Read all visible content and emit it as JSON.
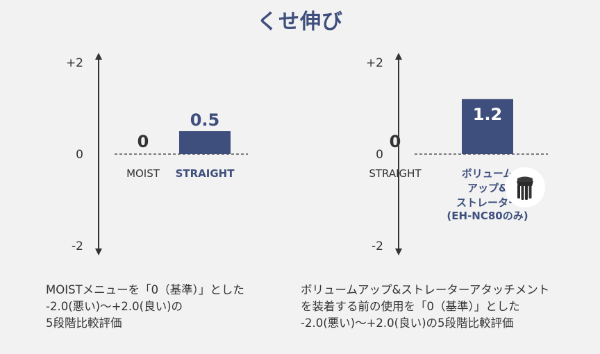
{
  "title": "くせ伸び",
  "colors": {
    "bar": "#3f4f7d",
    "title": "#3f4f7d",
    "text": "#333333",
    "background": "#f2f2f2"
  },
  "chart_data": [
    {
      "type": "bar",
      "title": "",
      "ylim": [
        -2,
        2
      ],
      "yticks": [
        "+2",
        "0",
        "-2"
      ],
      "ytick_values": [
        2,
        0,
        -2
      ],
      "categories": [
        "MOIST",
        "STRAIGHT"
      ],
      "values": [
        0,
        0.5
      ],
      "value_labels": [
        "0",
        "0.5"
      ],
      "highlight": [
        false,
        true
      ],
      "caption": "MOISTメニューを「0（基準）」とした\n-2.0(悪い)〜+2.0(良い)の\n5段階比較評価"
    },
    {
      "type": "bar",
      "title": "",
      "ylim": [
        -2,
        2
      ],
      "yticks": [
        "+2",
        "0",
        "-2"
      ],
      "ytick_values": [
        2,
        0,
        -2
      ],
      "categories": [
        "STRAIGHT",
        "ボリューム\nアップ&\nストレーター\n(EH-NC80のみ)"
      ],
      "values": [
        0,
        1.2
      ],
      "value_labels": [
        "0",
        "1.2"
      ],
      "highlight": [
        false,
        true
      ],
      "caption": "ボリュームアップ&ストレーターアタッチメント\nを装着する前の使用を「0（基準）」とした\n-2.0(悪い)〜+2.0(良い)の5段階比較評価"
    }
  ]
}
